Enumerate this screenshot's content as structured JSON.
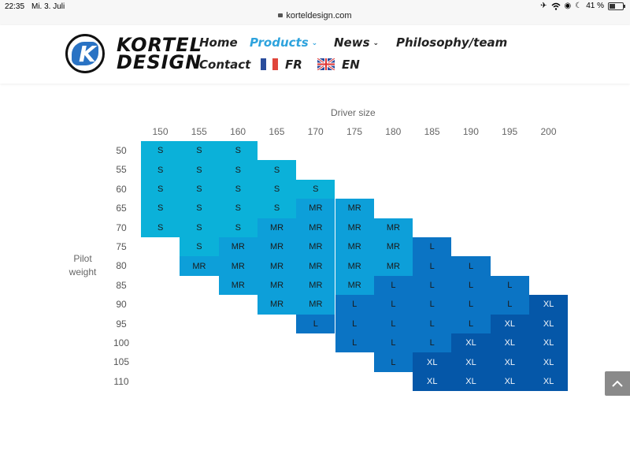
{
  "status_bar": {
    "time": "22:35",
    "date": "Mi. 3. Juli",
    "url": "korteldesign.com",
    "battery": "41 %",
    "battery_level": 0.41
  },
  "brand": {
    "logo_letter": "K",
    "line1": "KORTEL",
    "line2": "DESIGN"
  },
  "nav": {
    "home": "Home",
    "products": "Products",
    "news": "News",
    "philosophy": "Philosophy/team",
    "contact": "Contact",
    "fr": "FR",
    "en": "EN"
  },
  "chart_data": {
    "type": "table",
    "title": "Driver size",
    "ylabel": "Pilot weight",
    "columns": [
      "150",
      "155",
      "160",
      "165",
      "170",
      "175",
      "180",
      "185",
      "190",
      "195",
      "200"
    ],
    "rows": [
      "50",
      "55",
      "60",
      "65",
      "70",
      "75",
      "80",
      "85",
      "90",
      "95",
      "100",
      "105",
      "110"
    ],
    "cells": [
      [
        "S",
        "S",
        "S",
        "",
        "",
        "",
        "",
        "",
        "",
        "",
        ""
      ],
      [
        "S",
        "S",
        "S",
        "S",
        "",
        "",
        "",
        "",
        "",
        "",
        ""
      ],
      [
        "S",
        "S",
        "S",
        "S",
        "S",
        "",
        "",
        "",
        "",
        "",
        ""
      ],
      [
        "S",
        "S",
        "S",
        "S",
        "MR",
        "MR",
        "",
        "",
        "",
        "",
        ""
      ],
      [
        "S",
        "S",
        "S",
        "MR",
        "MR",
        "MR",
        "MR",
        "",
        "",
        "",
        ""
      ],
      [
        "",
        "S",
        "MR",
        "MR",
        "MR",
        "MR",
        "MR",
        "L",
        "",
        "",
        ""
      ],
      [
        "",
        "MR",
        "MR",
        "MR",
        "MR",
        "MR",
        "MR",
        "L",
        "L",
        "",
        ""
      ],
      [
        "",
        "",
        "MR",
        "MR",
        "MR",
        "MR",
        "L",
        "L",
        "L",
        "L",
        ""
      ],
      [
        "",
        "",
        "",
        "MR",
        "MR",
        "L",
        "L",
        "L",
        "L",
        "L",
        "XL"
      ],
      [
        "",
        "",
        "",
        "",
        "L",
        "L",
        "L",
        "L",
        "L",
        "XL",
        "XL"
      ],
      [
        "",
        "",
        "",
        "",
        "",
        "L",
        "L",
        "L",
        "XL",
        "XL",
        "XL"
      ],
      [
        "",
        "",
        "",
        "",
        "",
        "",
        "L",
        "XL",
        "XL",
        "XL",
        "XL"
      ],
      [
        "",
        "",
        "",
        "",
        "",
        "",
        "",
        "XL",
        "XL",
        "XL",
        "XL"
      ]
    ],
    "colors": {
      "S": "#0bb1d9",
      "MR": "#0d9fd9",
      "L": "#0b74c4",
      "XL": "#0557a8"
    }
  }
}
